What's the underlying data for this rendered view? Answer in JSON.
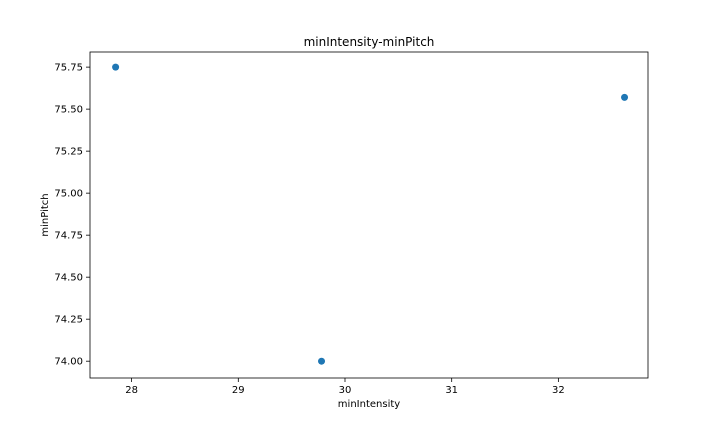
{
  "chart_data": {
    "type": "scatter",
    "title": "minIntensity-minPitch",
    "xlabel": "minIntensity",
    "ylabel": "minPitch",
    "xlim": [
      27.61,
      32.84
    ],
    "ylim": [
      73.9,
      75.84
    ],
    "xticks": [
      28,
      29,
      30,
      31,
      32
    ],
    "xtick_labels": [
      "28",
      "29",
      "30",
      "31",
      "32"
    ],
    "yticks": [
      74.0,
      74.25,
      74.5,
      74.75,
      75.0,
      75.25,
      75.5,
      75.75
    ],
    "ytick_labels": [
      "74.00",
      "74.25",
      "74.50",
      "74.75",
      "75.00",
      "75.25",
      "75.50",
      "75.75"
    ],
    "points": [
      {
        "x": 27.85,
        "y": 75.75
      },
      {
        "x": 29.78,
        "y": 74.0
      },
      {
        "x": 32.62,
        "y": 75.57
      }
    ],
    "marker_color": "#1f77b4",
    "grid": false,
    "legend": false
  }
}
